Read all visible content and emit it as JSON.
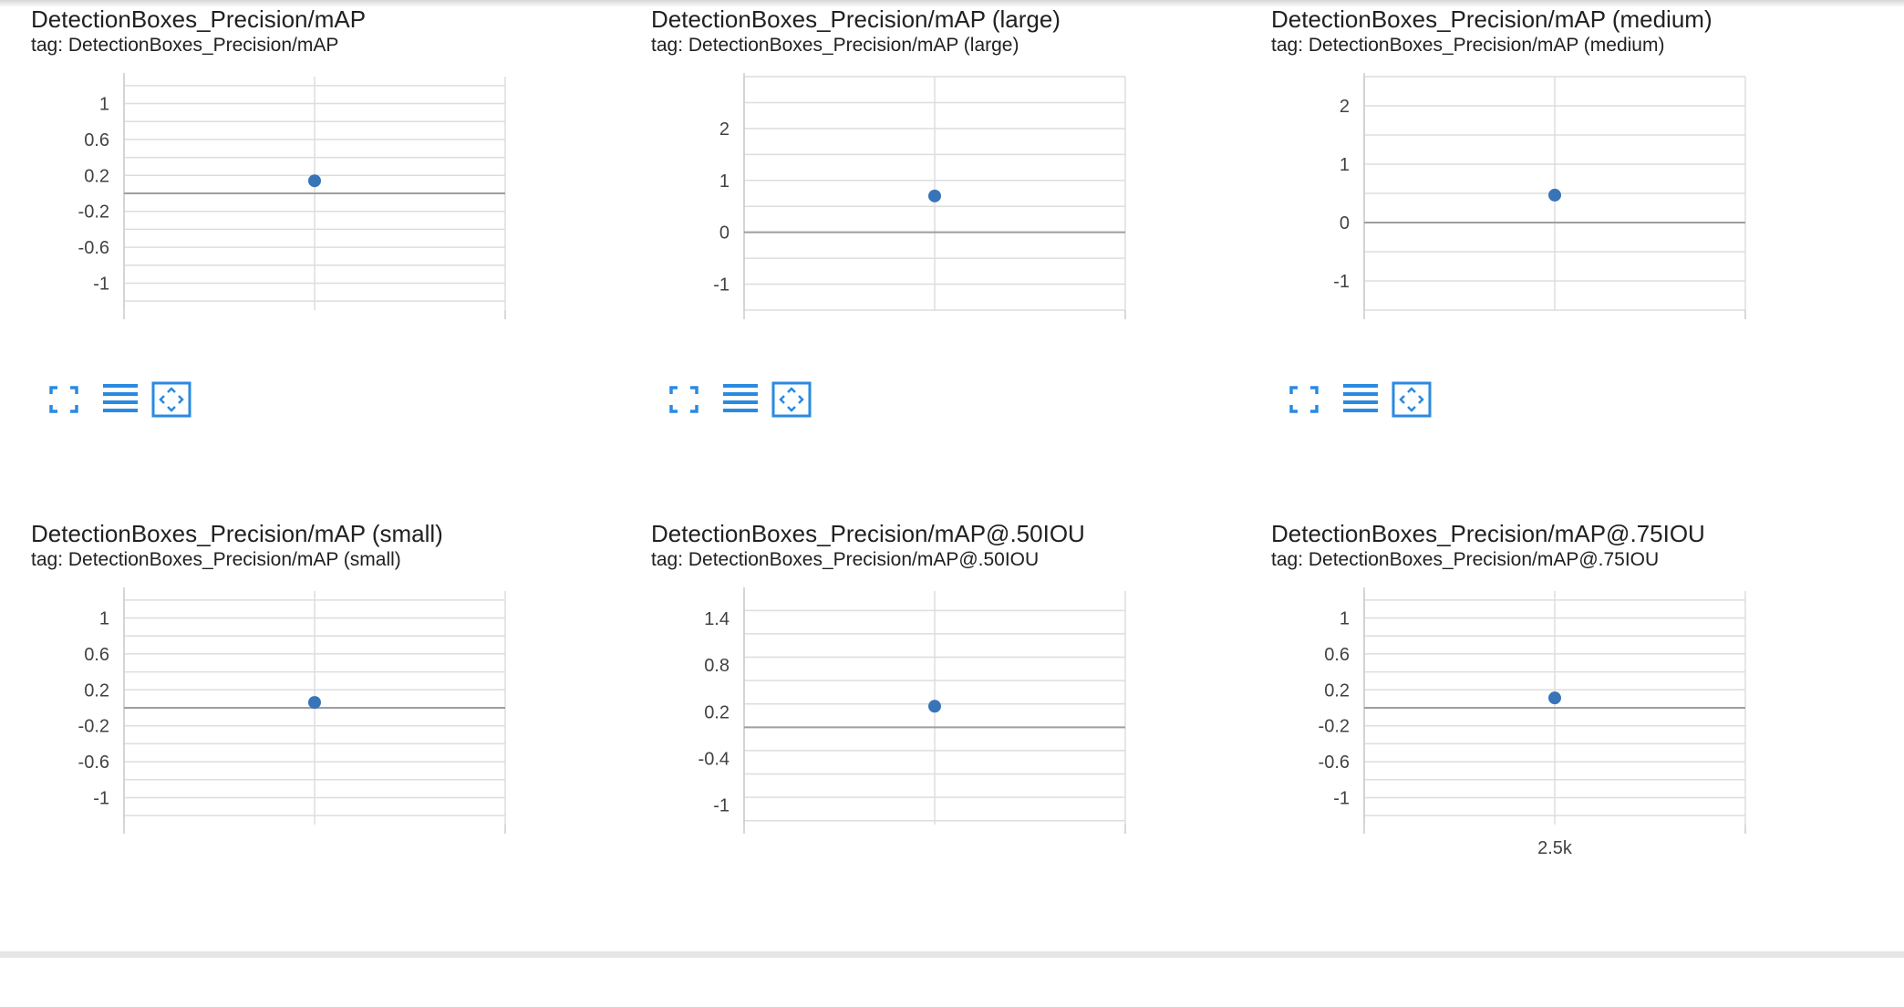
{
  "colors": {
    "grid": "#dddddd",
    "zero_line": "#9e9e9e",
    "axis": "#cccccc",
    "point": "#3874b8",
    "icon": "#2a8ae0"
  },
  "toolbar_icons": [
    "fullscreen-icon",
    "data-table-icon",
    "fit-domain-icon"
  ],
  "chart_data": [
    {
      "type": "scatter",
      "title": "DetectionBoxes_Precision/mAP",
      "tag": "tag: DetectionBoxes_Precision/mAP",
      "ylim": [
        -1.3,
        1.3
      ],
      "yticks": [
        1,
        0.6,
        0.2,
        -0.2,
        -0.6,
        -1
      ],
      "ytick_labels": [
        "1",
        "0.6",
        "0.2",
        "-0.2",
        "-0.6",
        "-1"
      ],
      "xlim": [
        2000,
        3000
      ],
      "xticks": [],
      "xtick_labels": [],
      "points": [
        {
          "x": 2500,
          "y": 0.14
        }
      ],
      "grid": true
    },
    {
      "type": "scatter",
      "title": "DetectionBoxes_Precision/mAP (large)",
      "tag": "tag: DetectionBoxes_Precision/mAP (large)",
      "ylim": [
        -1.5,
        3.0
      ],
      "yticks": [
        2,
        1,
        0,
        -1
      ],
      "ytick_labels": [
        "2",
        "1",
        "0",
        "-1"
      ],
      "xlim": [
        2000,
        3000
      ],
      "xticks": [],
      "xtick_labels": [],
      "points": [
        {
          "x": 2500,
          "y": 0.7
        }
      ],
      "grid": true
    },
    {
      "type": "scatter",
      "title": "DetectionBoxes_Precision/mAP (medium)",
      "tag": "tag: DetectionBoxes_Precision/mAP (medium)",
      "ylim": [
        -1.5,
        2.5
      ],
      "yticks": [
        2,
        1,
        0,
        -1
      ],
      "ytick_labels": [
        "2",
        "1",
        "0",
        "-1"
      ],
      "xlim": [
        2000,
        3000
      ],
      "xticks": [],
      "xtick_labels": [],
      "points": [
        {
          "x": 2500,
          "y": 0.47
        }
      ],
      "grid": true
    },
    {
      "type": "scatter",
      "title": "DetectionBoxes_Precision/mAP (small)",
      "tag": "tag: DetectionBoxes_Precision/mAP (small)",
      "ylim": [
        -1.3,
        1.3
      ],
      "yticks": [
        1,
        0.6,
        0.2,
        -0.2,
        -0.6,
        -1
      ],
      "ytick_labels": [
        "1",
        "0.6",
        "0.2",
        "-0.2",
        "-0.6",
        "-1"
      ],
      "xlim": [
        2000,
        3000
      ],
      "xticks": [],
      "xtick_labels": [],
      "points": [
        {
          "x": 2500,
          "y": 0.06
        }
      ],
      "grid": true
    },
    {
      "type": "scatter",
      "title": "DetectionBoxes_Precision/mAP@.50IOU",
      "tag": "tag: DetectionBoxes_Precision/mAP@.50IOU",
      "ylim": [
        -1.25,
        1.75
      ],
      "yticks": [
        1.4,
        0.8,
        0.2,
        -0.4,
        -1
      ],
      "ytick_labels": [
        "1.4",
        "0.8",
        "0.2",
        "-0.4",
        "-1"
      ],
      "xlim": [
        2000,
        3000
      ],
      "xticks": [],
      "xtick_labels": [],
      "points": [
        {
          "x": 2500,
          "y": 0.27
        }
      ],
      "grid": true
    },
    {
      "type": "scatter",
      "title": "DetectionBoxes_Precision/mAP@.75IOU",
      "tag": "tag: DetectionBoxes_Precision/mAP@.75IOU",
      "ylim": [
        -1.3,
        1.3
      ],
      "yticks": [
        1,
        0.6,
        0.2,
        -0.2,
        -0.6,
        -1
      ],
      "ytick_labels": [
        "1",
        "0.6",
        "0.2",
        "-0.2",
        "-0.6",
        "-1"
      ],
      "xlim": [
        2000,
        3000
      ],
      "xticks": [
        2500
      ],
      "xtick_labels": [
        "2.5k"
      ],
      "points": [
        {
          "x": 2500,
          "y": 0.11
        }
      ],
      "grid": true
    }
  ]
}
